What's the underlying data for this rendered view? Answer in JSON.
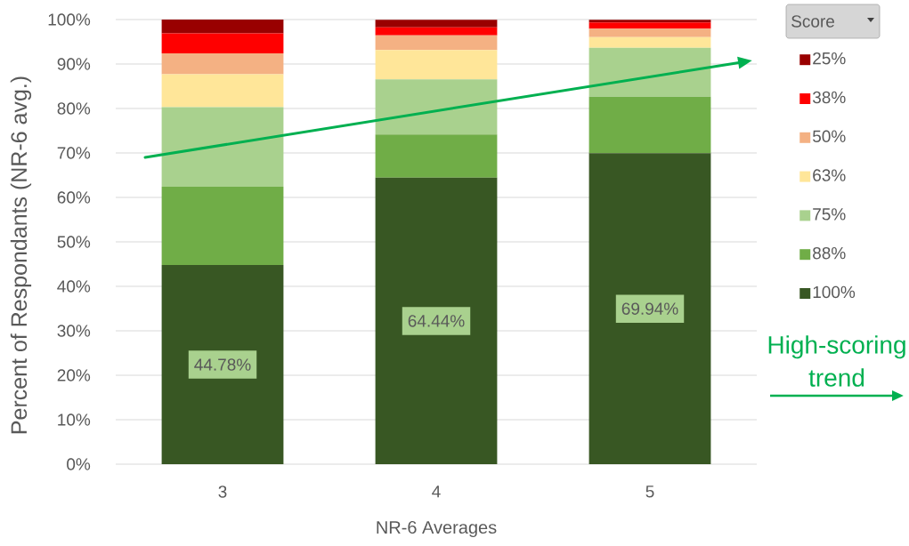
{
  "chart_data": {
    "type": "bar",
    "stacked": true,
    "xlabel": "NR-6 Averages",
    "ylabel": "Percent of Respondants (NR-6 avg.)",
    "legend_title": "Score",
    "legend": "right",
    "grid": "y",
    "categories": [
      "3",
      "4",
      "5"
    ],
    "ylim": [
      0,
      100
    ],
    "yticks": [
      {
        "value": 0,
        "label": "0%"
      },
      {
        "value": 10,
        "label": "10%"
      },
      {
        "value": 20,
        "label": "20%"
      },
      {
        "value": 30,
        "label": "30%"
      },
      {
        "value": 40,
        "label": "40%"
      },
      {
        "value": 50,
        "label": "50%"
      },
      {
        "value": 60,
        "label": "60%"
      },
      {
        "value": 70,
        "label": "70%"
      },
      {
        "value": 80,
        "label": "80%"
      },
      {
        "value": 90,
        "label": "90%"
      },
      {
        "value": 100,
        "label": "100%"
      }
    ],
    "annotations": [
      "High-scoring trend"
    ],
    "series": [
      {
        "name": "100%",
        "color": "#385723",
        "values": [
          44.78,
          64.44,
          69.94
        ],
        "value_labels": [
          "44.78%",
          "64.44%",
          "69.94%"
        ]
      },
      {
        "name": "88%",
        "color": "#70ad47",
        "values": [
          17.6,
          9.7,
          12.7
        ]
      },
      {
        "name": "75%",
        "color": "#a9d18e",
        "values": [
          17.9,
          12.4,
          11.0
        ]
      },
      {
        "name": "63%",
        "color": "#ffe699",
        "values": [
          7.4,
          6.6,
          2.4
        ]
      },
      {
        "name": "50%",
        "color": "#f4b183",
        "values": [
          4.7,
          3.3,
          1.9
        ]
      },
      {
        "name": "38%",
        "color": "#ff0000",
        "values": [
          4.5,
          1.8,
          1.4
        ]
      },
      {
        "name": "25%",
        "color": "#990000",
        "values": [
          3.1,
          1.7,
          0.6
        ]
      }
    ]
  }
}
